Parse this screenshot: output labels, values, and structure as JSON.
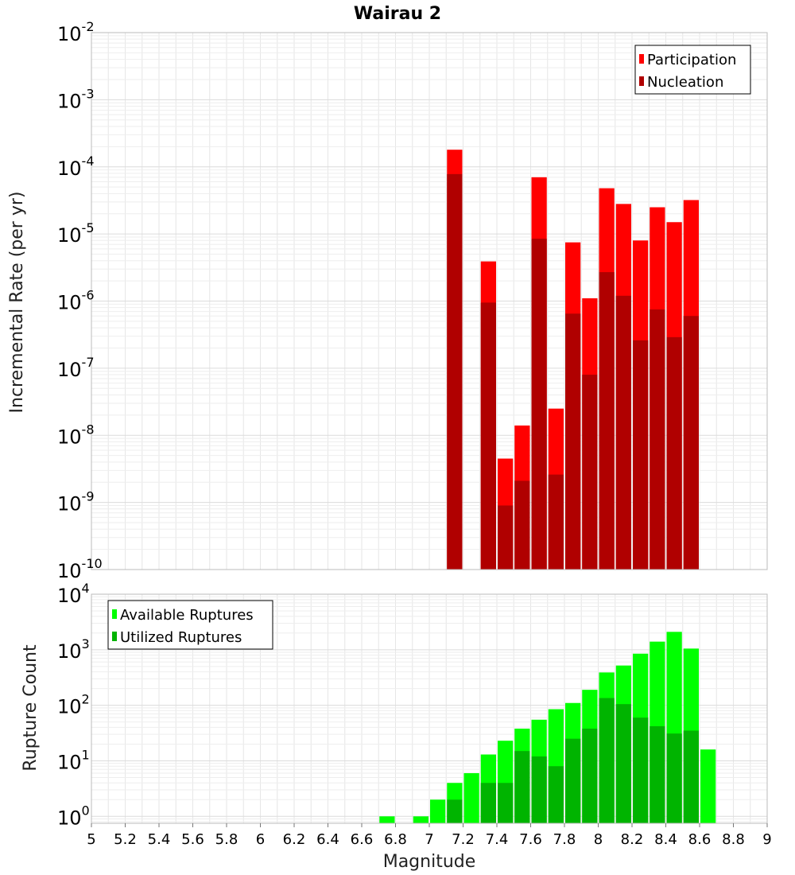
{
  "title": "Wairau 2",
  "colors": {
    "participation": "#ff0000",
    "nucleation": "#b00000",
    "available": "#00ff00",
    "utilized": "#00b400",
    "grid": "#e6e6e6",
    "frame": "#bbbbbb"
  },
  "chart_data": [
    {
      "type": "bar",
      "panel": "top",
      "ylabel": "Incremental Rate (per yr)",
      "yscale": "log",
      "ylim": [
        1e-10,
        0.01
      ],
      "xlim": [
        5,
        9
      ],
      "grid": true,
      "legend_position": "top-right",
      "legend": [
        "Participation",
        "Nucleation"
      ],
      "y_tick_exponents": [
        "-10",
        "-9",
        "-8",
        "-7",
        "-6",
        "-5",
        "-4",
        "-3",
        "-2"
      ],
      "x": [
        7.15,
        7.35,
        7.45,
        7.55,
        7.65,
        7.75,
        7.85,
        7.95,
        8.05,
        8.15,
        8.25,
        8.35,
        8.45,
        8.55
      ],
      "series": [
        {
          "name": "Participation",
          "values": [
            0.00018,
            3.9e-06,
            4.5e-09,
            1.4e-08,
            7e-05,
            2.5e-08,
            7.5e-06,
            1.1e-06,
            4.8e-05,
            2.8e-05,
            8e-06,
            2.5e-05,
            1.5e-05,
            3.2e-05
          ]
        },
        {
          "name": "Nucleation",
          "values": [
            7.8e-05,
            9.5e-07,
            9e-10,
            2.1e-09,
            8.5e-06,
            2.6e-09,
            6.5e-07,
            8e-08,
            2.7e-06,
            1.2e-06,
            2.6e-07,
            7.5e-07,
            2.9e-07,
            6e-07
          ]
        }
      ]
    },
    {
      "type": "bar",
      "panel": "bottom",
      "xlabel": "Magnitude",
      "ylabel": "Rupture Count",
      "yscale": "log",
      "ylim": [
        0.75,
        10000
      ],
      "xlim": [
        5,
        9
      ],
      "grid": true,
      "legend_position": "top-left",
      "legend": [
        "Available Ruptures",
        "Utilized Ruptures"
      ],
      "y_tick_exponents": [
        "0",
        "1",
        "2",
        "3",
        "4"
      ],
      "x_tick_labels": [
        "5",
        "5.2",
        "5.4",
        "5.6",
        "5.8",
        "6",
        "6.2",
        "6.4",
        "6.6",
        "6.8",
        "7",
        "7.2",
        "7.4",
        "7.6",
        "7.8",
        "8",
        "8.2",
        "8.4",
        "8.6",
        "8.8",
        "9"
      ],
      "x": [
        6.75,
        6.95,
        7.05,
        7.15,
        7.25,
        7.35,
        7.45,
        7.55,
        7.65,
        7.75,
        7.85,
        7.95,
        8.05,
        8.15,
        8.25,
        8.35,
        8.45,
        8.55,
        8.65
      ],
      "series": [
        {
          "name": "Available Ruptures",
          "values": [
            1,
            1,
            2,
            4,
            6,
            13,
            23,
            38,
            55,
            85,
            110,
            190,
            390,
            520,
            850,
            1400,
            2100,
            1050,
            16
          ]
        },
        {
          "name": "Utilized Ruptures",
          "values": [
            0,
            0,
            0,
            2,
            0,
            4,
            4,
            15,
            12,
            8,
            25,
            38,
            135,
            105,
            60,
            42,
            31,
            35,
            0
          ]
        }
      ]
    }
  ]
}
